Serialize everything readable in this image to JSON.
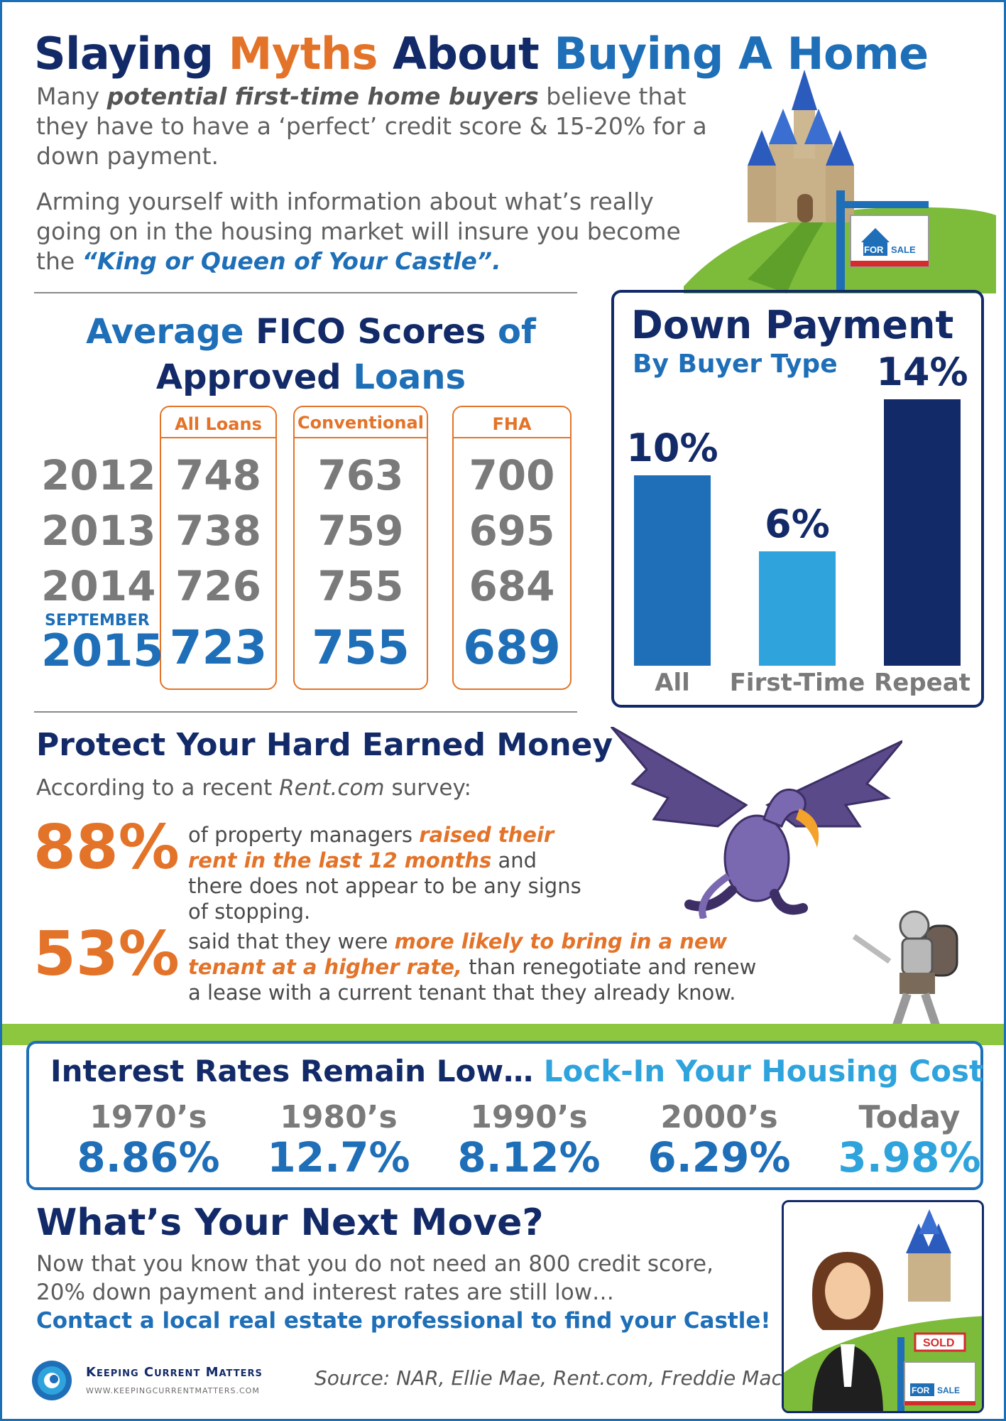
{
  "header": {
    "title_1": "Slaying",
    "title_2": "Myths",
    "title_3": "About",
    "title_4": "Buying A Home",
    "intro1_a": "Many",
    "intro1_b": "potential first-time home buyers",
    "intro1_c": "believe that they have to have a ‘perfect’ credit score & 15-20% for a down payment.",
    "intro2_a": "Arming yourself with information about what’s really going on in the housing market will insure you become the",
    "intro2_b": "“King or Queen of Your Castle”.",
    "sign_for": "FOR",
    "sign_sale": "SALE"
  },
  "fico": {
    "title_1": "Average",
    "title_2": "FICO Scores",
    "title_3": "of",
    "title_4": "Approved",
    "title_5": "Loans",
    "columns": [
      "All Loans",
      "Conventional",
      "FHA"
    ],
    "years": [
      "2012",
      "2013",
      "2014",
      "2015"
    ],
    "september_label": "SEPTEMBER",
    "rows": [
      [
        "748",
        "763",
        "700"
      ],
      [
        "738",
        "759",
        "695"
      ],
      [
        "726",
        "755",
        "684"
      ],
      [
        "723",
        "755",
        "689"
      ]
    ]
  },
  "down_payment": {
    "title": "Down Payment",
    "subtitle": "By Buyer Type"
  },
  "chart_data": {
    "type": "bar",
    "title": "Down Payment",
    "subtitle": "By Buyer Type",
    "categories": [
      "All",
      "First-Time",
      "Repeat"
    ],
    "values": [
      10,
      6,
      14
    ],
    "value_labels": [
      "10%",
      "6%",
      "14%"
    ],
    "ylim": [
      0,
      14
    ],
    "colors": [
      "#1e6fb8",
      "#2ea3dc",
      "#132a68"
    ],
    "grid": false,
    "legend": "none"
  },
  "protect": {
    "title": "Protect Your Hard Earned Money",
    "intro_a": "According to a recent",
    "intro_b": "Rent.com",
    "intro_c": "survey:",
    "stat1_pct": "88%",
    "stat1_a": "of property managers",
    "stat1_b": "raised their rent in the last 12 months",
    "stat1_c": "and there does not appear to be any signs of stopping.",
    "stat2_pct": "53%",
    "stat2_a": "said that they were",
    "stat2_b": "more likely to bring in a new tenant at a higher rate,",
    "stat2_c": "than renegotiate and renew a lease with a current tenant that they already know."
  },
  "rates": {
    "title_a": "Interest Rates Remain Low…",
    "title_b": "Lock-In Your Housing Cost",
    "items": [
      {
        "label": "1970’s",
        "value": "8.86%"
      },
      {
        "label": "1980’s",
        "value": "12.7%"
      },
      {
        "label": "1990’s",
        "value": "8.12%"
      },
      {
        "label": "2000’s",
        "value": "6.29%"
      },
      {
        "label": "Today",
        "value": "3.98%"
      }
    ]
  },
  "next_move": {
    "title": "What’s Your Next Move?",
    "body": "Now that you know that you do not need an 800 credit score, 20% down payment and interest rates are still low…",
    "cta": "Contact a local real estate professional to find your Castle!",
    "sold": "SOLD",
    "sign_for": "FOR",
    "sign_sale": "SALE"
  },
  "footer": {
    "brand": "Keeping Current Matters",
    "url": "WWW.KEEPINGCURRENTMATTERS.COM",
    "source": "Source: NAR, Ellie Mae, Rent.com, Freddie Mac"
  },
  "colors": {
    "navy": "#132a68",
    "blue": "#1e6fb8",
    "light_blue": "#2ea3dc",
    "orange": "#e37329",
    "green": "#7dbb3a"
  },
  "icons": [
    "castle-icon",
    "for-sale-sign-icon",
    "dragon-icon",
    "knight-icon",
    "realtor-woman-icon",
    "kcm-logo-icon"
  ]
}
